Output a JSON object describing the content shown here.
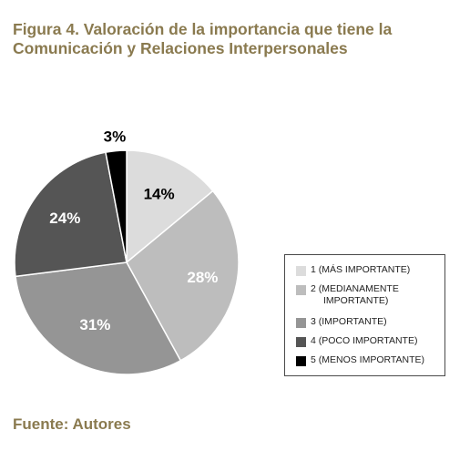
{
  "title": {
    "line1": "Figura 4. Valoración de la importancia que tiene la",
    "line2": "Comunicación y Relaciones Interpersonales"
  },
  "source": "Fuente: Autores",
  "chart_data": {
    "type": "pie",
    "title": "Figura 4. Valoración de la importancia que tiene la Comunicación y Relaciones Interpersonales",
    "slices": [
      {
        "category": "1 (MÁS IMPORTANTE)",
        "value": 14,
        "label": "14%",
        "color": "#dcdcdc",
        "label_color": "#000000"
      },
      {
        "category": "2 (MEDIANAMENTE IMPORTANTE)",
        "value": 28,
        "label": "28%",
        "color": "#bdbdbd",
        "label_color": "#ffffff"
      },
      {
        "category": "3 (IMPORTANTE)",
        "value": 31,
        "label": "31%",
        "color": "#959595",
        "label_color": "#ffffff"
      },
      {
        "category": "4 (POCO IMPORTANTE)",
        "value": 24,
        "label": "24%",
        "color": "#555555",
        "label_color": "#ffffff"
      },
      {
        "category": "5 (MENOS IMPORTANTE)",
        "value": 3,
        "label": "3%",
        "color": "#000000",
        "label_color": "#000000"
      }
    ],
    "legend_position": "right"
  },
  "legend": {
    "items": [
      {
        "line1": "1 (MÁS IMPORTANTE)",
        "line2": "",
        "color": "#dcdcdc"
      },
      {
        "line1": "2 (MEDIANAMENTE",
        "line2": "IMPORTANTE)",
        "color": "#bdbdbd"
      },
      {
        "line1": "3 (IMPORTANTE)",
        "line2": "",
        "color": "#959595"
      },
      {
        "line1": "4 (POCO IMPORTANTE)",
        "line2": "",
        "color": "#555555"
      },
      {
        "line1": "5 (MENOS IMPORTANTE)",
        "line2": "",
        "color": "#000000"
      }
    ]
  }
}
